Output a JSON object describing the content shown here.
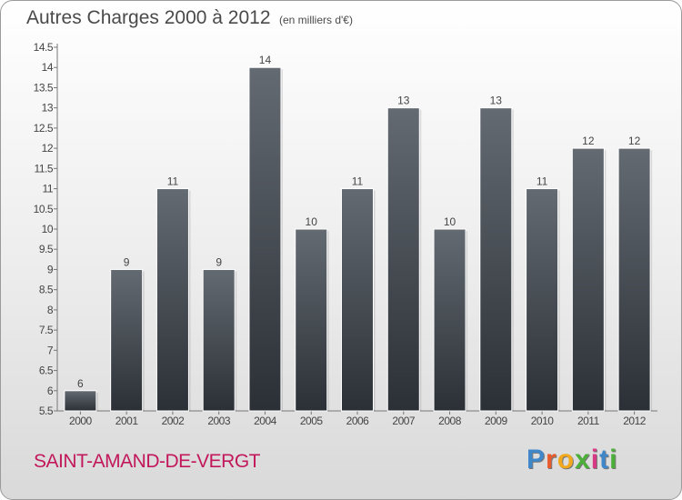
{
  "header": {
    "title": "Autres Charges 2000 à 2012",
    "subtitle": "(en milliers d'€)"
  },
  "footer": {
    "commune": "SAINT-AMAND-DE-VERGT",
    "logo_letters": [
      "P",
      "r",
      "o",
      "x",
      "i",
      "t",
      "i"
    ],
    "logo_colors": [
      "#3f87c9",
      "#e85b2c",
      "#f2a81d",
      "#4caf3a",
      "#d63a85",
      "#3f87c9",
      "#4caf3a"
    ]
  },
  "chart_data": {
    "type": "bar",
    "title": "Autres Charges 2000 à 2012",
    "subtitle": "(en milliers d'€)",
    "xlabel": "",
    "ylabel": "",
    "categories": [
      "2000",
      "2001",
      "2002",
      "2003",
      "2004",
      "2005",
      "2006",
      "2007",
      "2008",
      "2009",
      "2010",
      "2011",
      "2012"
    ],
    "values": [
      6,
      9,
      11,
      9,
      14,
      10,
      11,
      13,
      10,
      13,
      11,
      12,
      12
    ],
    "value_labels": [
      "6",
      "9",
      "11",
      "9",
      "14",
      "10",
      "11",
      "13",
      "10",
      "13",
      "11",
      "12",
      "12"
    ],
    "ylim": [
      5.5,
      14.5
    ],
    "yticks": [
      5.5,
      6,
      6.5,
      7,
      7.5,
      8,
      8.5,
      9,
      9.5,
      10,
      10.5,
      11,
      11.5,
      12,
      12.5,
      13,
      13.5,
      14,
      14.5
    ],
    "ytick_labels": [
      "5.5",
      "6",
      "6.5",
      "7",
      "7.5",
      "8",
      "8.5",
      "9",
      "9.5",
      "10",
      "10.5",
      "11",
      "11.5",
      "12",
      "12.5",
      "13",
      "13.5",
      "14",
      "14.5"
    ],
    "grid": false,
    "bar_color_top": "#646a72",
    "bar_color_bottom": "#2b3036"
  }
}
